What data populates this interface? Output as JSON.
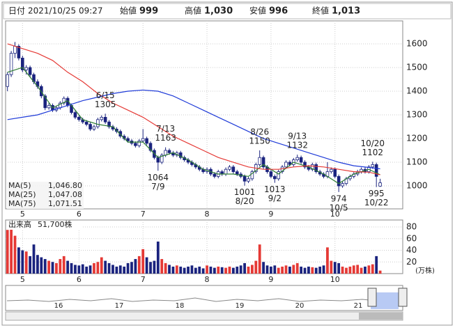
{
  "header": [
    {
      "label": "日付",
      "value": "2021/10/25 09:27",
      "color": "#222"
    },
    {
      "label": "始値",
      "value": "999",
      "color": "#222"
    },
    {
      "label": "高値",
      "value": "1,030",
      "color": "#e00000"
    },
    {
      "label": "安値",
      "value": "996",
      "color": "#008000"
    },
    {
      "label": "終値",
      "value": "1,013",
      "color": "#222"
    }
  ],
  "chart_data": {
    "type": "candlestick",
    "xlim": [
      -0.5,
      105
    ],
    "xticks": [
      {
        "value": 4,
        "label": "5"
      },
      {
        "value": 19,
        "label": "6"
      },
      {
        "value": 36,
        "label": "7"
      },
      {
        "value": 53,
        "label": "8"
      },
      {
        "value": 70,
        "label": "9"
      },
      {
        "value": 87,
        "label": "10"
      }
    ],
    "ylim": [
      903,
      1697
    ],
    "yticks": [
      1000,
      1100,
      1200,
      1300,
      1400,
      1500,
      1600
    ],
    "grid": true,
    "up_color": "#ffffff",
    "down_color": "#1a237e",
    "outline_color": "#1a237e",
    "candles": [
      [
        1420,
        1480,
        1400,
        1470
      ],
      [
        1470,
        1570,
        1460,
        1560
      ],
      [
        1560,
        1608,
        1540,
        1590
      ],
      [
        1590,
        1598,
        1530,
        1540
      ],
      [
        1540,
        1550,
        1480,
        1490
      ],
      [
        1490,
        1510,
        1470,
        1500
      ],
      [
        1500,
        1508,
        1460,
        1470
      ],
      [
        1470,
        1478,
        1430,
        1440
      ],
      [
        1440,
        1450,
        1410,
        1420
      ],
      [
        1420,
        1428,
        1370,
        1380
      ],
      [
        1380,
        1388,
        1320,
        1330
      ],
      [
        1330,
        1350,
        1322,
        1340
      ],
      [
        1340,
        1348,
        1312,
        1320
      ],
      [
        1320,
        1338,
        1312,
        1330
      ],
      [
        1330,
        1358,
        1322,
        1350
      ],
      [
        1350,
        1378,
        1342,
        1370
      ],
      [
        1370,
        1378,
        1332,
        1340
      ],
      [
        1340,
        1348,
        1302,
        1310
      ],
      [
        1310,
        1318,
        1282,
        1290
      ],
      [
        1290,
        1298,
        1272,
        1280
      ],
      [
        1280,
        1288,
        1262,
        1270
      ],
      [
        1270,
        1278,
        1252,
        1260
      ],
      [
        1260,
        1268,
        1232,
        1240
      ],
      [
        1240,
        1258,
        1232,
        1250
      ],
      [
        1250,
        1288,
        1242,
        1280
      ],
      [
        1280,
        1298,
        1272,
        1290
      ],
      [
        1290,
        1305,
        1262,
        1270
      ],
      [
        1270,
        1278,
        1242,
        1250
      ],
      [
        1250,
        1258,
        1232,
        1240
      ],
      [
        1240,
        1248,
        1222,
        1230
      ],
      [
        1230,
        1238,
        1202,
        1210
      ],
      [
        1210,
        1218,
        1192,
        1200
      ],
      [
        1200,
        1208,
        1182,
        1190
      ],
      [
        1190,
        1198,
        1172,
        1180
      ],
      [
        1180,
        1188,
        1162,
        1170
      ],
      [
        1170,
        1198,
        1162,
        1190
      ],
      [
        1190,
        1240,
        1182,
        1200
      ],
      [
        1200,
        1208,
        1172,
        1180
      ],
      [
        1180,
        1188,
        1142,
        1150
      ],
      [
        1150,
        1158,
        1112,
        1120
      ],
      [
        1120,
        1128,
        1064,
        1100
      ],
      [
        1100,
        1138,
        1092,
        1130
      ],
      [
        1130,
        1163,
        1122,
        1150
      ],
      [
        1150,
        1158,
        1132,
        1140
      ],
      [
        1140,
        1148,
        1122,
        1130
      ],
      [
        1130,
        1148,
        1122,
        1140
      ],
      [
        1140,
        1148,
        1112,
        1120
      ],
      [
        1120,
        1128,
        1102,
        1110
      ],
      [
        1110,
        1118,
        1092,
        1100
      ],
      [
        1100,
        1108,
        1082,
        1090
      ],
      [
        1090,
        1098,
        1072,
        1080
      ],
      [
        1080,
        1088,
        1062,
        1070
      ],
      [
        1070,
        1078,
        1052,
        1060
      ],
      [
        1060,
        1078,
        1052,
        1070
      ],
      [
        1070,
        1078,
        1042,
        1050
      ],
      [
        1050,
        1058,
        1032,
        1040
      ],
      [
        1040,
        1068,
        1032,
        1060
      ],
      [
        1060,
        1068,
        1042,
        1050
      ],
      [
        1050,
        1078,
        1042,
        1070
      ],
      [
        1070,
        1088,
        1062,
        1080
      ],
      [
        1080,
        1088,
        1052,
        1060
      ],
      [
        1060,
        1068,
        1042,
        1050
      ],
      [
        1050,
        1058,
        1032,
        1040
      ],
      [
        1040,
        1048,
        1001,
        1020
      ],
      [
        1020,
        1038,
        1012,
        1030
      ],
      [
        1030,
        1068,
        1022,
        1060
      ],
      [
        1060,
        1098,
        1052,
        1090
      ],
      [
        1090,
        1150,
        1082,
        1120
      ],
      [
        1120,
        1128,
        1072,
        1080
      ],
      [
        1080,
        1088,
        1052,
        1060
      ],
      [
        1060,
        1068,
        1032,
        1040
      ],
      [
        1040,
        1048,
        1013,
        1030
      ],
      [
        1030,
        1068,
        1022,
        1060
      ],
      [
        1060,
        1088,
        1052,
        1080
      ],
      [
        1080,
        1108,
        1072,
        1100
      ],
      [
        1100,
        1108,
        1082,
        1090
      ],
      [
        1090,
        1118,
        1082,
        1110
      ],
      [
        1110,
        1132,
        1102,
        1120
      ],
      [
        1120,
        1128,
        1092,
        1100
      ],
      [
        1100,
        1108,
        1072,
        1080
      ],
      [
        1080,
        1088,
        1062,
        1070
      ],
      [
        1070,
        1098,
        1062,
        1090
      ],
      [
        1090,
        1098,
        1052,
        1060
      ],
      [
        1060,
        1068,
        1042,
        1050
      ],
      [
        1050,
        1058,
        1032,
        1040
      ],
      [
        1040,
        1100,
        1032,
        1060
      ],
      [
        1060,
        1078,
        1052,
        1070
      ],
      [
        1070,
        1078,
        1032,
        1040
      ],
      [
        1040,
        1048,
        974,
        1000
      ],
      [
        1000,
        1018,
        992,
        1010
      ],
      [
        1010,
        1038,
        1002,
        1030
      ],
      [
        1030,
        1048,
        1022,
        1040
      ],
      [
        1040,
        1058,
        1032,
        1050
      ],
      [
        1050,
        1068,
        1042,
        1060
      ],
      [
        1060,
        1078,
        1052,
        1070
      ],
      [
        1070,
        1078,
        1052,
        1060
      ],
      [
        1060,
        1088,
        1052,
        1080
      ],
      [
        1080,
        1102,
        1072,
        1090
      ],
      [
        1090,
        1098,
        995,
        1040
      ],
      [
        999,
        1030,
        996,
        1013
      ]
    ],
    "ma_x": [
      0,
      4,
      8,
      12,
      16,
      20,
      24,
      28,
      32,
      36,
      40,
      44,
      48,
      52,
      56,
      60,
      64,
      68,
      72,
      76,
      80,
      84,
      88,
      92,
      96,
      99
    ],
    "ma": [
      {
        "name": "MA(5)",
        "color": "#2e7d32",
        "last_label": "1,046.80",
        "values": [
          1480,
          1500,
          1420,
          1330,
          1360,
          1280,
          1260,
          1250,
          1185,
          1185,
          1120,
          1140,
          1110,
          1070,
          1050,
          1050,
          1040,
          1090,
          1050,
          1100,
          1080,
          1050,
          1010,
          1050,
          1070,
          1047
        ]
      },
      {
        "name": "MA(25)",
        "color": "#e53935",
        "last_label": "1,047.08",
        "values": [
          1600,
          1580,
          1560,
          1530,
          1480,
          1440,
          1390,
          1350,
          1320,
          1290,
          1250,
          1210,
          1180,
          1150,
          1120,
          1100,
          1080,
          1070,
          1070,
          1080,
          1085,
          1080,
          1070,
          1060,
          1058,
          1047
        ]
      },
      {
        "name": "MA(75)",
        "color": "#1e3ad8",
        "last_label": "1,071.51",
        "values": [
          1280,
          1290,
          1300,
          1320,
          1340,
          1360,
          1375,
          1390,
          1400,
          1405,
          1400,
          1380,
          1350,
          1320,
          1290,
          1260,
          1230,
          1200,
          1180,
          1160,
          1140,
          1120,
          1100,
          1085,
          1078,
          1072
        ]
      }
    ],
    "annotations": [
      {
        "date": "6/15",
        "value": 1305,
        "kind": "high"
      },
      {
        "date": "7/9",
        "value": 1064,
        "kind": "low"
      },
      {
        "date": "7/13",
        "value": 1163,
        "kind": "high"
      },
      {
        "date": "8/20",
        "value": 1001,
        "kind": "low"
      },
      {
        "date": "8/26",
        "value": 1150,
        "kind": "high"
      },
      {
        "date": "9/2",
        "value": 1013,
        "kind": "low"
      },
      {
        "date": "9/13",
        "value": 1132,
        "kind": "high"
      },
      {
        "date": "10/5",
        "value": 974,
        "kind": "low"
      },
      {
        "date": "10/20",
        "value": 1102,
        "kind": "high"
      },
      {
        "date": "10/22",
        "value": 995,
        "kind": "low"
      }
    ],
    "volume_title": "出来高",
    "volume_label": "51,700株",
    "volume_unit": "(万株)",
    "vlim": [
      0,
      92
    ],
    "vticks": [
      20,
      40,
      60,
      80
    ],
    "up_volume_color": "#e53935",
    "down_volume_color": "#1a237e",
    "volume": [
      75,
      78,
      65,
      45,
      40,
      38,
      30,
      50,
      32,
      28,
      25,
      22,
      20,
      18,
      25,
      30,
      22,
      18,
      15,
      14,
      16,
      12,
      14,
      18,
      20,
      28,
      22,
      18,
      15,
      12,
      14,
      12,
      18,
      20,
      25,
      30,
      42,
      28,
      20,
      22,
      55,
      25,
      18,
      15,
      12,
      14,
      12,
      10,
      12,
      14,
      10,
      12,
      9,
      14,
      12,
      10,
      12,
      11,
      10,
      12,
      10,
      12,
      14,
      18,
      12,
      15,
      22,
      50,
      20,
      14,
      12,
      14,
      10,
      12,
      14,
      12,
      15,
      18,
      12,
      10,
      12,
      11,
      10,
      12,
      14,
      45,
      22,
      20,
      18,
      12,
      10,
      12,
      14,
      15,
      10,
      12,
      14,
      16,
      30,
      5.17
    ]
  },
  "navigator": {
    "labels": [
      "16",
      "17",
      "18",
      "19",
      "20",
      "21"
    ]
  }
}
